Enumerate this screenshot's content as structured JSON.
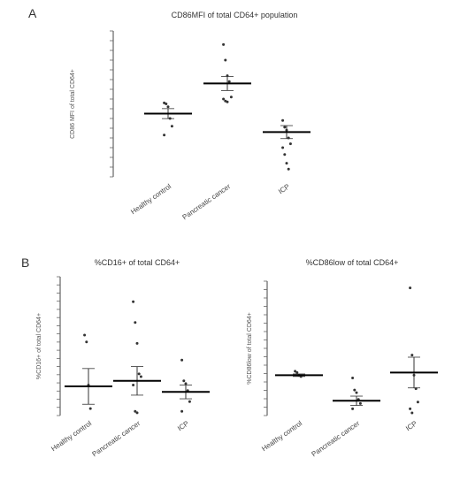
{
  "panels": [
    {
      "letter": "A"
    },
    {
      "letter": "B"
    }
  ],
  "chart_data": [
    {
      "id": "chartA",
      "type": "scatter",
      "title": "CD86MFI of total CD64+ population",
      "ylabel": "CD86 MFI of total CD64+",
      "ylim": [
        0,
        750
      ],
      "categories": [
        "Healthy control",
        "Pancreatic cancer",
        "ICP"
      ],
      "points": [
        [
          380,
          375,
          360,
          300,
          260,
          215
        ],
        [
          680,
          600,
          520,
          490,
          410,
          400,
          390,
          385
        ],
        [
          290,
          255,
          240,
          200,
          170,
          150,
          115,
          70,
          40
        ]
      ],
      "means": [
        325,
        480,
        230
      ],
      "grid": false
    },
    {
      "id": "chartB1",
      "type": "scatter",
      "title": "%CD16+ of total CD64+",
      "ylabel": "%CD16+ of total CD64+",
      "ylim": [
        0,
        100
      ],
      "categories": [
        "Healthy control",
        "Pancreatic cancer",
        "ICP"
      ],
      "points": [
        [
          58,
          53,
          22,
          5
        ],
        [
          82,
          67,
          52,
          30,
          28,
          22,
          3,
          2
        ],
        [
          40,
          25,
          23,
          18,
          10,
          3
        ]
      ],
      "means": [
        21,
        25,
        17
      ],
      "grid": false
    },
    {
      "id": "chartB2",
      "type": "scatter",
      "title": "%CD86low of total CD64+",
      "ylabel": "%CD86low of total CD64+",
      "ylim": [
        0,
        100
      ],
      "categories": [
        "Healthy control",
        "Pancreatic cancer",
        "ICP"
      ],
      "points": [
        [
          33,
          32,
          30,
          29
        ],
        [
          28,
          19,
          17,
          12,
          9,
          5
        ],
        [
          95,
          45,
          30,
          20,
          10,
          5,
          2
        ]
      ],
      "means": [
        30,
        11,
        32
      ],
      "grid": false
    }
  ]
}
